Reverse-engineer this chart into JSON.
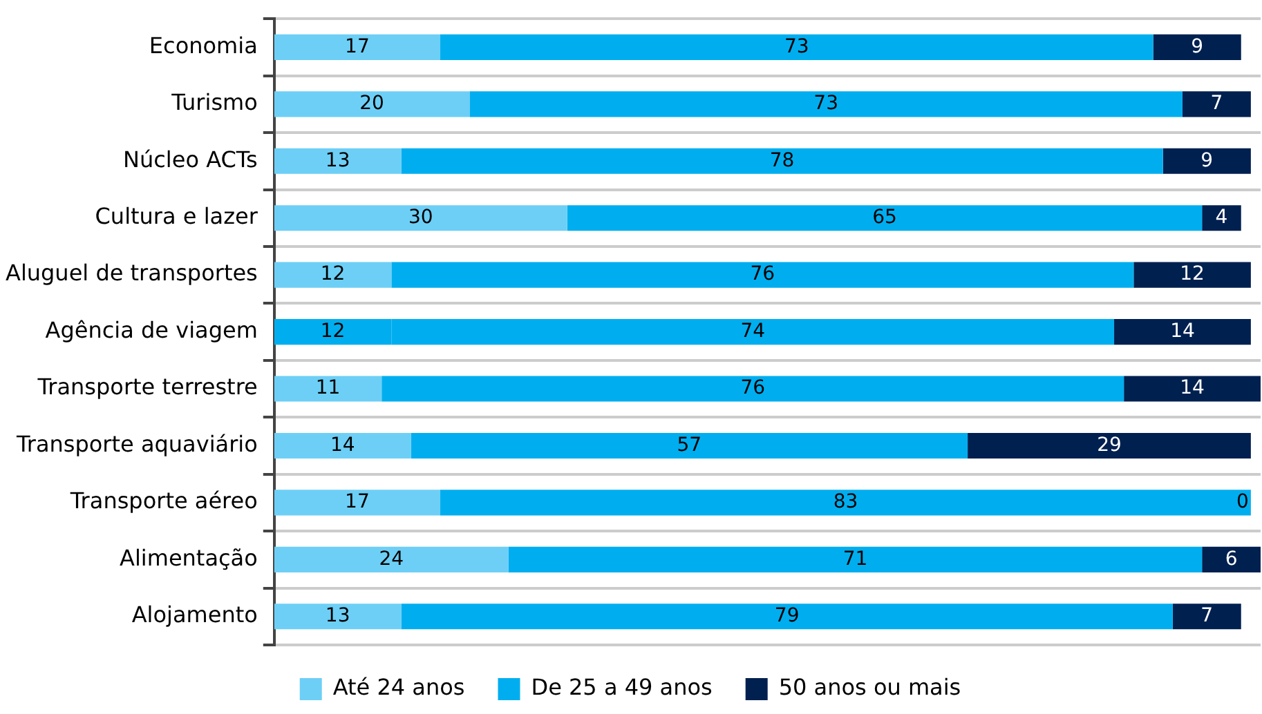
{
  "chart_data": {
    "type": "bar",
    "orientation": "horizontal",
    "stacked": true,
    "categories": [
      "Economia",
      "Turismo",
      "Núcleo ACTs",
      "Cultura e lazer",
      "Aluguel de transportes",
      "Agência de viagem",
      "Transporte terrestre",
      "Transporte aquaviário",
      "Transporte aéreo",
      "Alimentação",
      "Alojamento"
    ],
    "series": [
      {
        "name": "Até 24 anos",
        "color": "#6dcff6",
        "colors": [
          "#6dcff6",
          "#6dcff6",
          "#6dcff6",
          "#6dcff6",
          "#6dcff6",
          "#00aeef",
          "#6dcff6",
          "#6dcff6",
          "#6dcff6",
          "#6dcff6",
          "#6dcff6"
        ],
        "values": [
          17,
          20,
          13,
          30,
          12,
          12,
          11,
          14,
          17,
          24,
          13
        ]
      },
      {
        "name": "De 25 a 49 anos",
        "color": "#00aeef",
        "values": [
          73,
          73,
          78,
          65,
          76,
          74,
          76,
          57,
          83,
          71,
          79
        ]
      },
      {
        "name": "50 anos ou mais",
        "color": "#002050",
        "values": [
          9,
          7,
          9,
          4,
          12,
          14,
          14,
          29,
          0,
          6,
          7
        ]
      }
    ],
    "xlim": [
      0,
      101
    ],
    "tick_labels": "y",
    "grid": "y",
    "legend": "bottom",
    "data_labels": true
  }
}
